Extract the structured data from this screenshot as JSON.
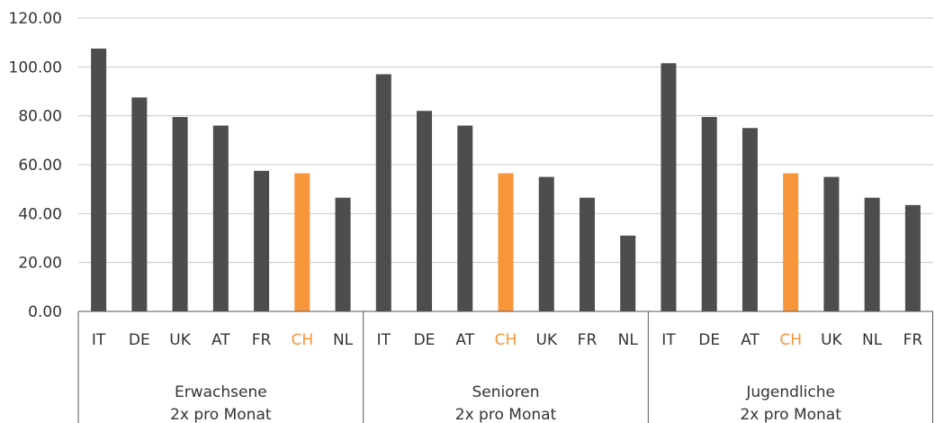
{
  "chart_data": {
    "type": "bar",
    "ylim": [
      0,
      120
    ],
    "yticks": [
      "0.00",
      "20.00",
      "40.00",
      "60.00",
      "80.00",
      "100.00",
      "120.00"
    ],
    "grid": true,
    "colors": {
      "bar": "#4d4d4f",
      "highlight": "#f7953a",
      "grid": "#c8c8c8",
      "axis": "#555555"
    },
    "groups": [
      {
        "label_line1": "Erwachsene",
        "label_line2": "2x pro Monat",
        "categories": [
          "IT",
          "DE",
          "UK",
          "AT",
          "FR",
          "CH",
          "NL"
        ],
        "values": [
          107.5,
          87.5,
          79.5,
          76,
          57.5,
          56.5,
          46.5
        ]
      },
      {
        "label_line1": "Senioren",
        "label_line2": "2x pro Monat",
        "categories": [
          "IT",
          "DE",
          "AT",
          "CH",
          "UK",
          "FR",
          "NL"
        ],
        "values": [
          97,
          82,
          76,
          56.5,
          55,
          46.5,
          31
        ]
      },
      {
        "label_line1": "Jugendliche",
        "label_line2": "2x pro Monat",
        "categories": [
          "IT",
          "DE",
          "AT",
          "CH",
          "UK",
          "NL",
          "FR"
        ],
        "values": [
          101.5,
          79.5,
          75,
          56.5,
          55,
          46.5,
          43.5
        ]
      }
    ],
    "highlight_category": "CH"
  }
}
